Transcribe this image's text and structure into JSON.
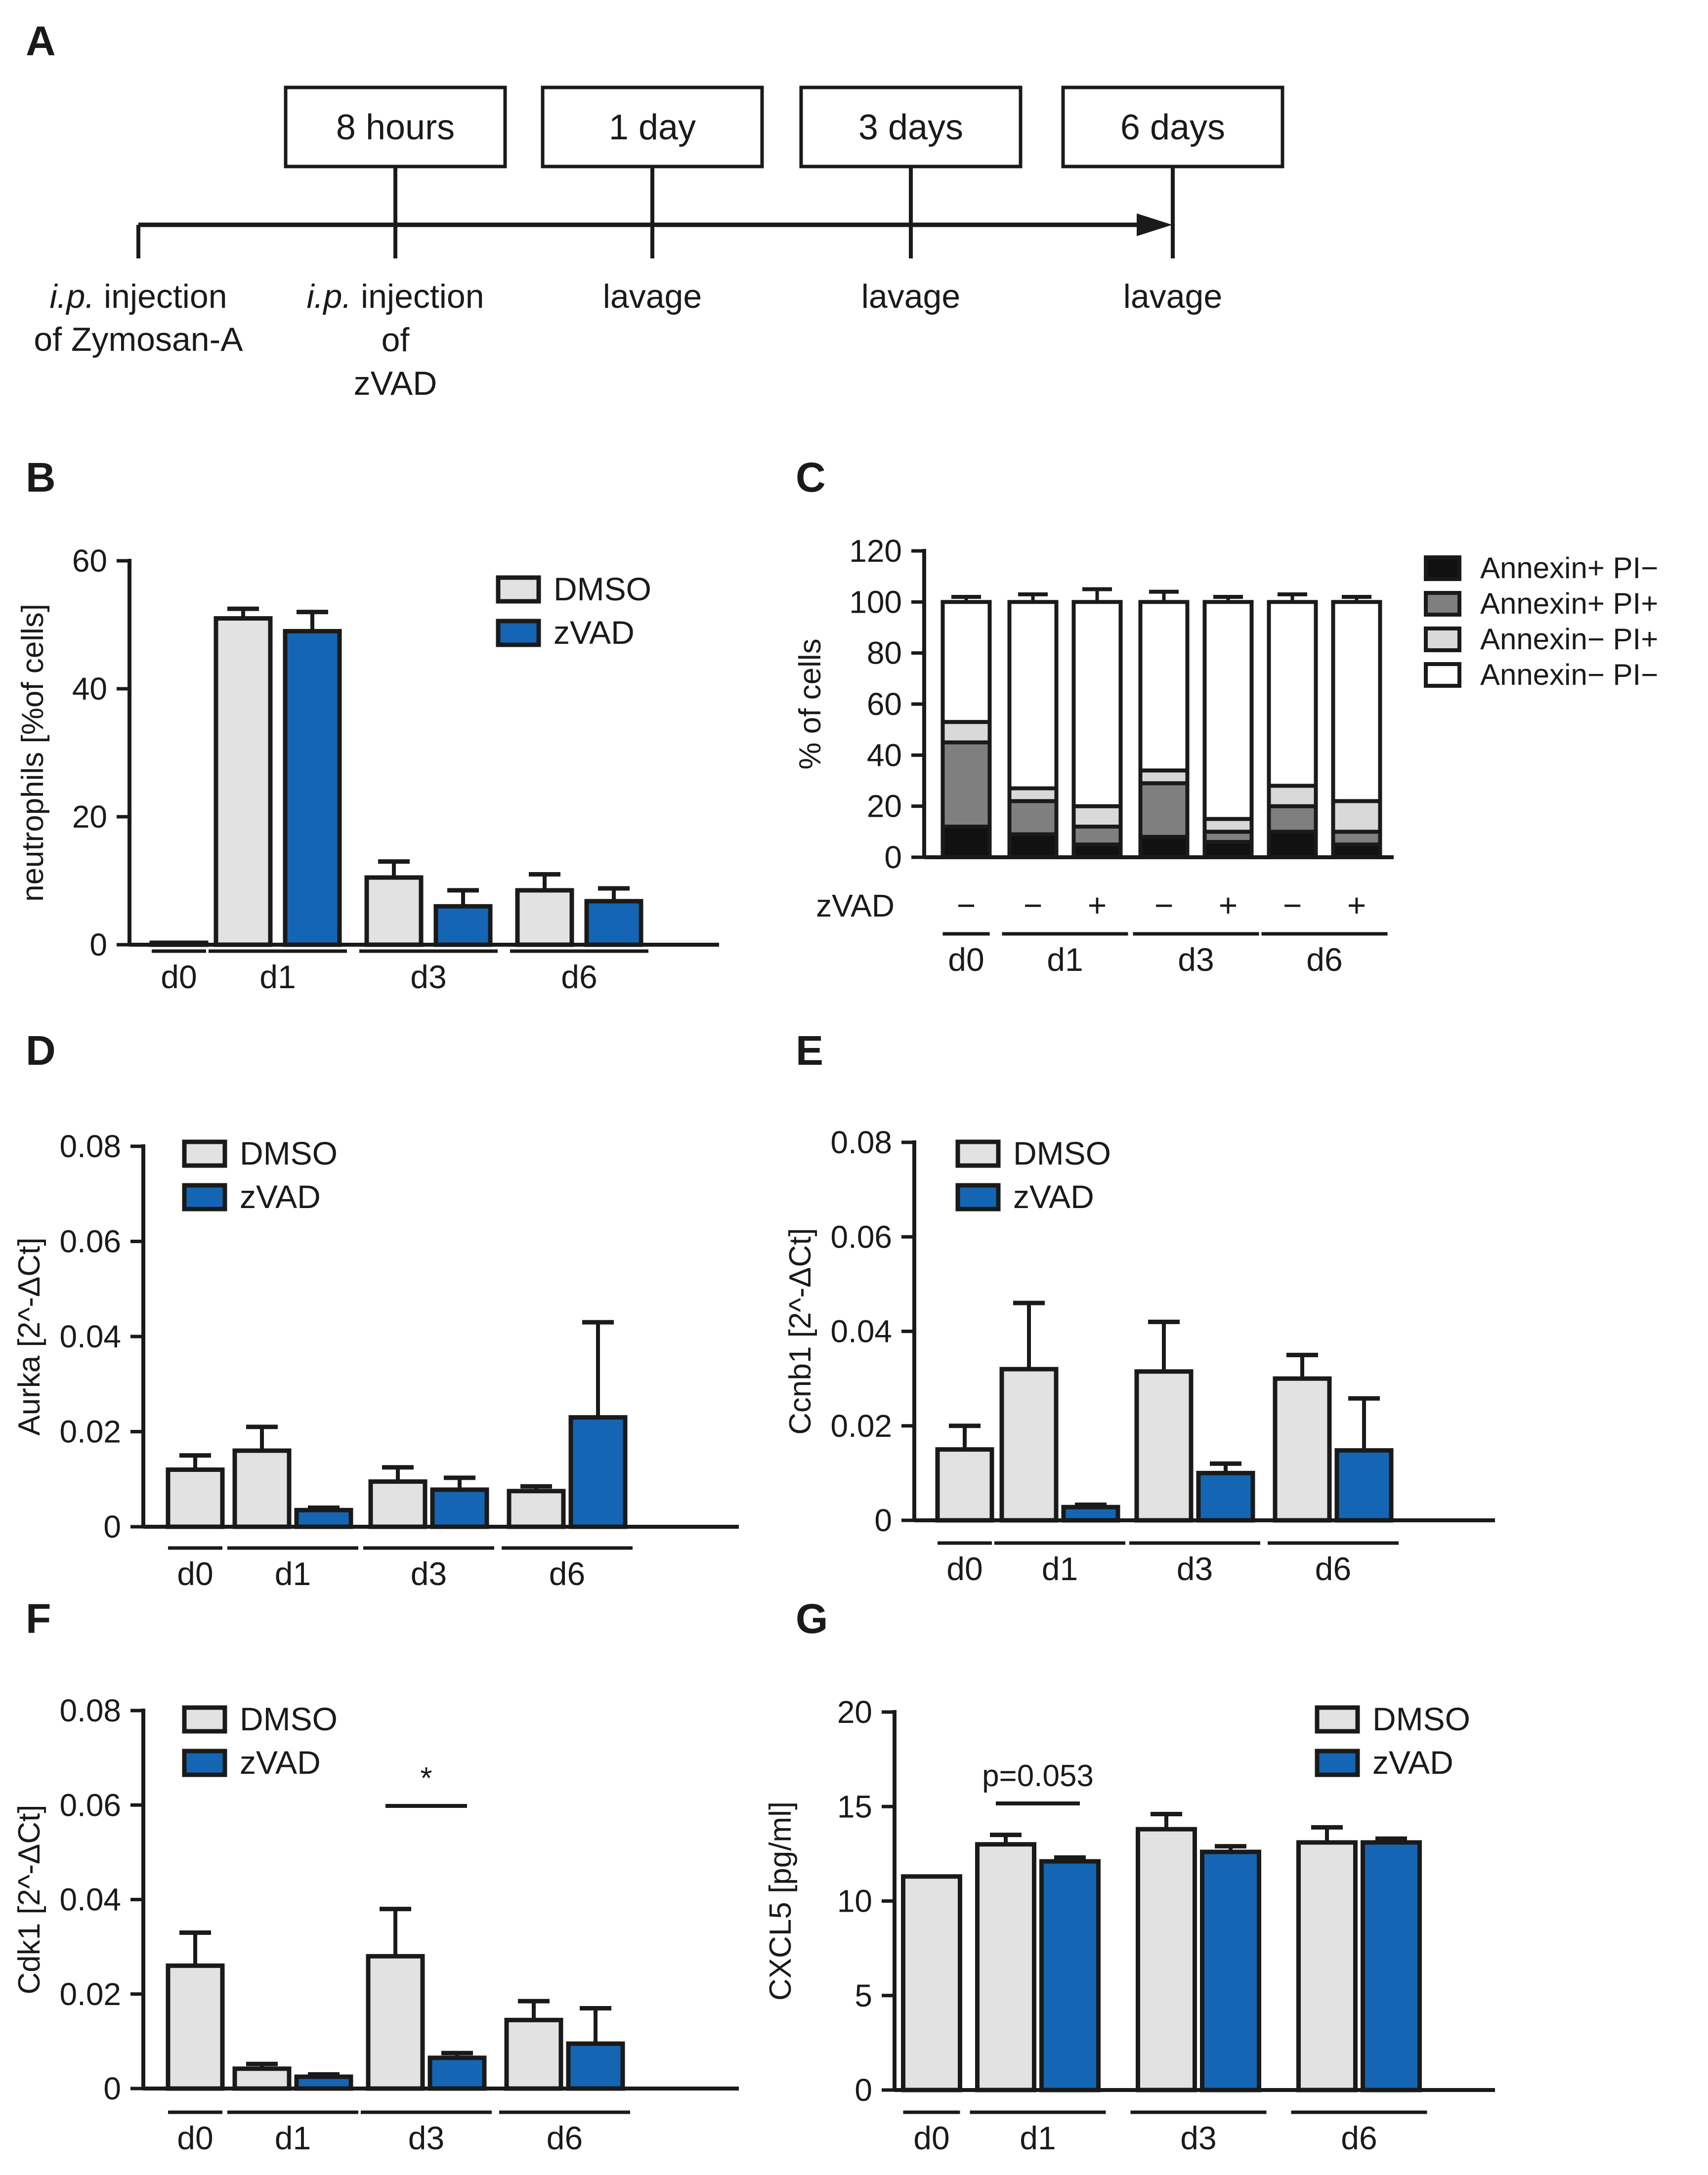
{
  "panels": {
    "a": {
      "label": "A",
      "steps": [
        {
          "box": "8 hours",
          "below": [
            "i.p. injection",
            "of",
            "zVAD"
          ]
        },
        {
          "box": "1 day",
          "below": [
            "lavage"
          ]
        },
        {
          "box": "3 days",
          "below": [
            "lavage"
          ]
        },
        {
          "box": "6 days",
          "below": [
            "lavage"
          ]
        }
      ],
      "start_label": [
        "i.p. injection",
        "of Zymosan-A"
      ],
      "italic_prefix": "i.p."
    },
    "b": {
      "label": "B"
    },
    "c": {
      "label": "C"
    },
    "d": {
      "label": "D"
    },
    "e": {
      "label": "E"
    },
    "f": {
      "label": "F"
    },
    "g": {
      "label": "G"
    }
  },
  "colors": {
    "dmso": "#e2e2e2",
    "zvad": "#1466b4",
    "annexin_pos_pi_pos": "#7f7f7f",
    "annexin_pos_pi_neg": "#111111",
    "annexin_neg_pi_pos": "#d9d9d9",
    "annexin_neg_pi_neg": "#ffffff"
  },
  "chart_data": [
    {
      "id": "B",
      "type": "bar",
      "ylabel": "neutrophils [%of cells]",
      "ylim": [
        0,
        60
      ],
      "yticks": [
        0,
        20,
        40,
        60
      ],
      "groups": [
        "d0",
        "d1",
        "d3",
        "d6"
      ],
      "legend": [
        "DMSO",
        "zVAD"
      ],
      "legend_position": "top-right",
      "bars": [
        {
          "group": "d0",
          "series": "DMSO",
          "value": 0.3,
          "err": 0
        },
        {
          "group": "d1",
          "series": "DMSO",
          "value": 51,
          "err": 1.5
        },
        {
          "group": "d1",
          "series": "zVAD",
          "value": 49,
          "err": 3
        },
        {
          "group": "d3",
          "series": "DMSO",
          "value": 10.5,
          "err": 2.5
        },
        {
          "group": "d3",
          "series": "zVAD",
          "value": 6,
          "err": 2.5
        },
        {
          "group": "d6",
          "series": "DMSO",
          "value": 8.5,
          "err": 2.5
        },
        {
          "group": "d6",
          "series": "zVAD",
          "value": 6.8,
          "err": 2
        }
      ]
    },
    {
      "id": "C",
      "type": "bar",
      "stacked": true,
      "ylabel": "% of cells",
      "ylim": [
        0,
        120
      ],
      "yticks": [
        0,
        20,
        40,
        60,
        80,
        100,
        120
      ],
      "row_label": "zVAD",
      "groups": [
        "d0",
        "d1",
        "d3",
        "d6"
      ],
      "legend": [
        "Annexin+ PI−",
        "Annexin+ PI+",
        "Annexin− PI+",
        "Annexin− PI−"
      ],
      "legend_position": "right",
      "bars": [
        {
          "group": "d0",
          "zvad": "−",
          "stack": [
            12,
            33,
            8,
            47
          ],
          "err": [
            4,
            5,
            3,
            2
          ]
        },
        {
          "group": "d1",
          "zvad": "−",
          "stack": [
            9,
            13,
            5,
            73
          ],
          "err": [
            2,
            2,
            2,
            3
          ]
        },
        {
          "group": "d1",
          "zvad": "+",
          "stack": [
            5,
            7,
            8,
            80
          ],
          "err": [
            2,
            2,
            3,
            5
          ]
        },
        {
          "group": "d3",
          "zvad": "−",
          "stack": [
            8,
            21,
            5,
            66
          ],
          "err": [
            2,
            2,
            2,
            4
          ]
        },
        {
          "group": "d3",
          "zvad": "+",
          "stack": [
            6,
            4,
            5,
            85
          ],
          "err": [
            2,
            2,
            2,
            2
          ]
        },
        {
          "group": "d6",
          "zvad": "−",
          "stack": [
            10,
            10,
            8,
            72
          ],
          "err": [
            2,
            3,
            2,
            3
          ]
        },
        {
          "group": "d6",
          "zvad": "+",
          "stack": [
            5,
            5,
            12,
            78
          ],
          "err": [
            2,
            2,
            3,
            2
          ]
        }
      ]
    },
    {
      "id": "D",
      "type": "bar",
      "ylabel": "Aurka [2^-ΔCt]",
      "ylim": [
        0,
        0.08
      ],
      "yticks": [
        "0",
        "0.02",
        "0.04",
        "0.06",
        "0.08"
      ],
      "groups": [
        "d0",
        "d1",
        "d3",
        "d6"
      ],
      "legend": [
        "DMSO",
        "zVAD"
      ],
      "legend_position": "top-left",
      "bars": [
        {
          "group": "d0",
          "series": "DMSO",
          "value": 0.012,
          "err": 0.003
        },
        {
          "group": "d1",
          "series": "DMSO",
          "value": 0.016,
          "err": 0.005
        },
        {
          "group": "d1",
          "series": "zVAD",
          "value": 0.0035,
          "err": 0.0005
        },
        {
          "group": "d3",
          "series": "DMSO",
          "value": 0.0095,
          "err": 0.003
        },
        {
          "group": "d3",
          "series": "zVAD",
          "value": 0.0078,
          "err": 0.0025
        },
        {
          "group": "d6",
          "series": "DMSO",
          "value": 0.0075,
          "err": 0.001
        },
        {
          "group": "d6",
          "series": "zVAD",
          "value": 0.023,
          "err": 0.02
        }
      ]
    },
    {
      "id": "E",
      "type": "bar",
      "ylabel": "Ccnb1 [2^-ΔCt]",
      "ylim": [
        0,
        0.08
      ],
      "yticks": [
        "0",
        "0.02",
        "0.04",
        "0.06",
        "0.08"
      ],
      "groups": [
        "d0",
        "d1",
        "d3",
        "d6"
      ],
      "legend": [
        "DMSO",
        "zVAD"
      ],
      "legend_position": "top-left",
      "bars": [
        {
          "group": "d0",
          "series": "DMSO",
          "value": 0.015,
          "err": 0.005
        },
        {
          "group": "d1",
          "series": "DMSO",
          "value": 0.032,
          "err": 0.014
        },
        {
          "group": "d1",
          "series": "zVAD",
          "value": 0.0028,
          "err": 0.0005
        },
        {
          "group": "d3",
          "series": "DMSO",
          "value": 0.0315,
          "err": 0.0105
        },
        {
          "group": "d3",
          "series": "zVAD",
          "value": 0.01,
          "err": 0.002
        },
        {
          "group": "d6",
          "series": "DMSO",
          "value": 0.03,
          "err": 0.005
        },
        {
          "group": "d6",
          "series": "zVAD",
          "value": 0.0148,
          "err": 0.011
        }
      ]
    },
    {
      "id": "F",
      "type": "bar",
      "ylabel": "Cdk1 [2^-ΔCt]",
      "ylim": [
        0,
        0.08
      ],
      "yticks": [
        "0",
        "0.02",
        "0.04",
        "0.06",
        "0.08"
      ],
      "groups": [
        "d0",
        "d1",
        "d3",
        "d6"
      ],
      "legend": [
        "DMSO",
        "zVAD"
      ],
      "legend_position": "top-left",
      "annotation": {
        "text": "*",
        "group": "d3"
      },
      "bars": [
        {
          "group": "d0",
          "series": "DMSO",
          "value": 0.026,
          "err": 0.007
        },
        {
          "group": "d1",
          "series": "DMSO",
          "value": 0.0042,
          "err": 0.001
        },
        {
          "group": "d1",
          "series": "zVAD",
          "value": 0.0025,
          "err": 0.0005
        },
        {
          "group": "d3",
          "series": "DMSO",
          "value": 0.028,
          "err": 0.01
        },
        {
          "group": "d3",
          "series": "zVAD",
          "value": 0.0065,
          "err": 0.001
        },
        {
          "group": "d6",
          "series": "DMSO",
          "value": 0.0145,
          "err": 0.004
        },
        {
          "group": "d6",
          "series": "zVAD",
          "value": 0.0095,
          "err": 0.0075
        }
      ]
    },
    {
      "id": "G",
      "type": "bar",
      "ylabel": "CXCL5 [pg/ml]",
      "ylim": [
        0,
        20
      ],
      "yticks": [
        "0",
        "5",
        "10",
        "15",
        "20"
      ],
      "groups": [
        "d0",
        "d1",
        "d3",
        "d6"
      ],
      "legend": [
        "DMSO",
        "zVAD"
      ],
      "legend_position": "top-right",
      "annotation": {
        "text": "p=0.053",
        "group": "d1"
      },
      "bars": [
        {
          "group": "d0",
          "series": "DMSO",
          "value": 11.3,
          "err": 0
        },
        {
          "group": "d1",
          "series": "DMSO",
          "value": 13,
          "err": 0.5
        },
        {
          "group": "d1",
          "series": "zVAD",
          "value": 12.1,
          "err": 0.2
        },
        {
          "group": "d3",
          "series": "DMSO",
          "value": 13.8,
          "err": 0.8
        },
        {
          "group": "d3",
          "series": "zVAD",
          "value": 12.6,
          "err": 0.3
        },
        {
          "group": "d6",
          "series": "DMSO",
          "value": 13.1,
          "err": 0.8
        },
        {
          "group": "d6",
          "series": "zVAD",
          "value": 13.1,
          "err": 0.2
        }
      ]
    }
  ]
}
